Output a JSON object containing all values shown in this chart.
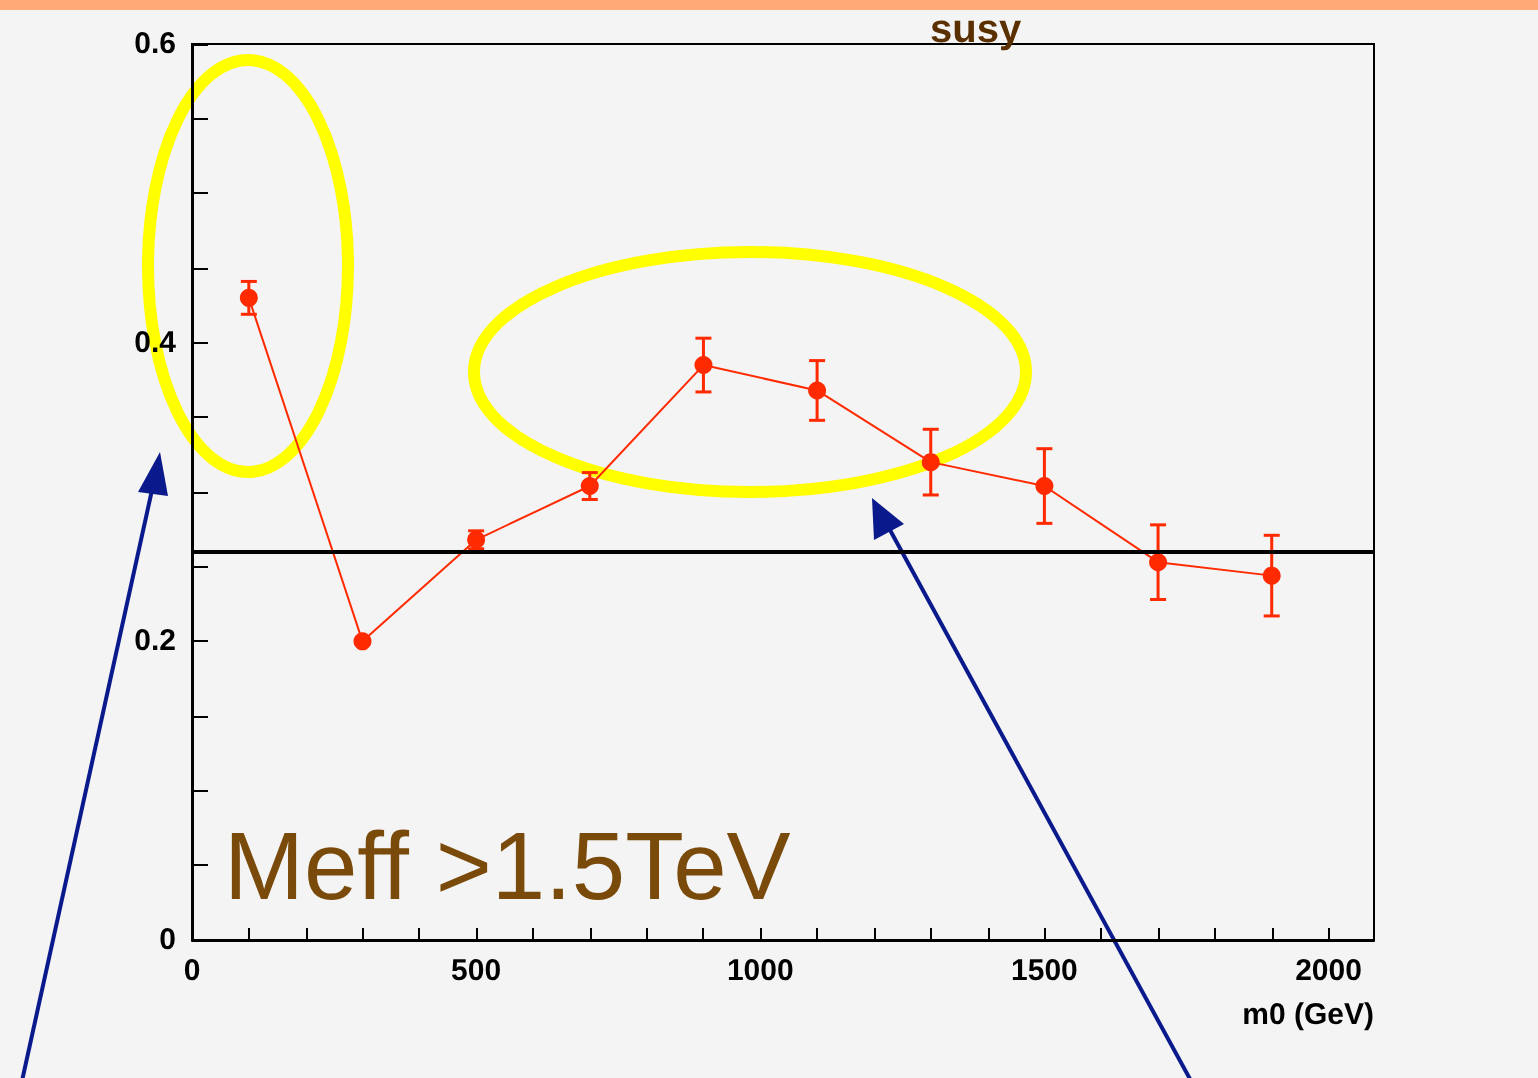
{
  "chart_data": {
    "type": "line",
    "title": "susy",
    "xlabel": "m0 (GeV)",
    "x": [
      100,
      300,
      500,
      700,
      900,
      1100,
      1300,
      1500,
      1700,
      1900
    ],
    "series": [
      {
        "color": "#ff2a00",
        "values": [
          0.43,
          0.2,
          0.268,
          0.304,
          0.385,
          0.368,
          0.32,
          0.304,
          0.253,
          0.244
        ],
        "errors": [
          0.011,
          null,
          0.006,
          0.009,
          0.018,
          0.02,
          0.022,
          0.025,
          0.025,
          0.027
        ]
      }
    ],
    "xlim": [
      0,
      2080
    ],
    "xticks": [
      0,
      {
        "value": 100,
        "label": null
      },
      {
        "value": 200,
        "label": null
      },
      {
        "value": 300,
        "label": null
      },
      {
        "value": 400,
        "label": null
      },
      500,
      {
        "value": 600,
        "label": null
      },
      {
        "value": 700,
        "label": null
      },
      {
        "value": 800,
        "label": null
      },
      {
        "value": 900,
        "label": null
      },
      1000,
      {
        "value": 1100,
        "label": null
      },
      {
        "value": 1200,
        "label": null
      },
      {
        "value": 1300,
        "label": null
      },
      {
        "value": 1400,
        "label": null
      },
      1500,
      {
        "value": 1600,
        "label": null
      },
      {
        "value": 1700,
        "label": null
      },
      {
        "value": 1800,
        "label": null
      },
      {
        "value": 1900,
        "label": null
      },
      2000
    ],
    "ylim": [
      0,
      0.6
    ],
    "yticks": [
      0,
      {
        "value": 0.05,
        "label": null
      },
      {
        "value": 0.1,
        "label": null
      },
      {
        "value": 0.15,
        "label": null
      },
      0.2,
      {
        "value": 0.25,
        "label": null
      },
      {
        "value": 0.3,
        "label": null
      },
      {
        "value": 0.35,
        "label": null
      },
      0.4,
      {
        "value": 0.45,
        "label": null
      },
      {
        "value": 0.5,
        "label": null
      },
      {
        "value": 0.55,
        "label": null
      },
      0.6
    ],
    "ref_lines": [
      {
        "axis": "y",
        "value": 0.26,
        "color": "#000000"
      }
    ],
    "annotations": [
      "Meff >1.5TeV"
    ],
    "marker": "circle",
    "line_style": "solid",
    "grid": false
  }
}
